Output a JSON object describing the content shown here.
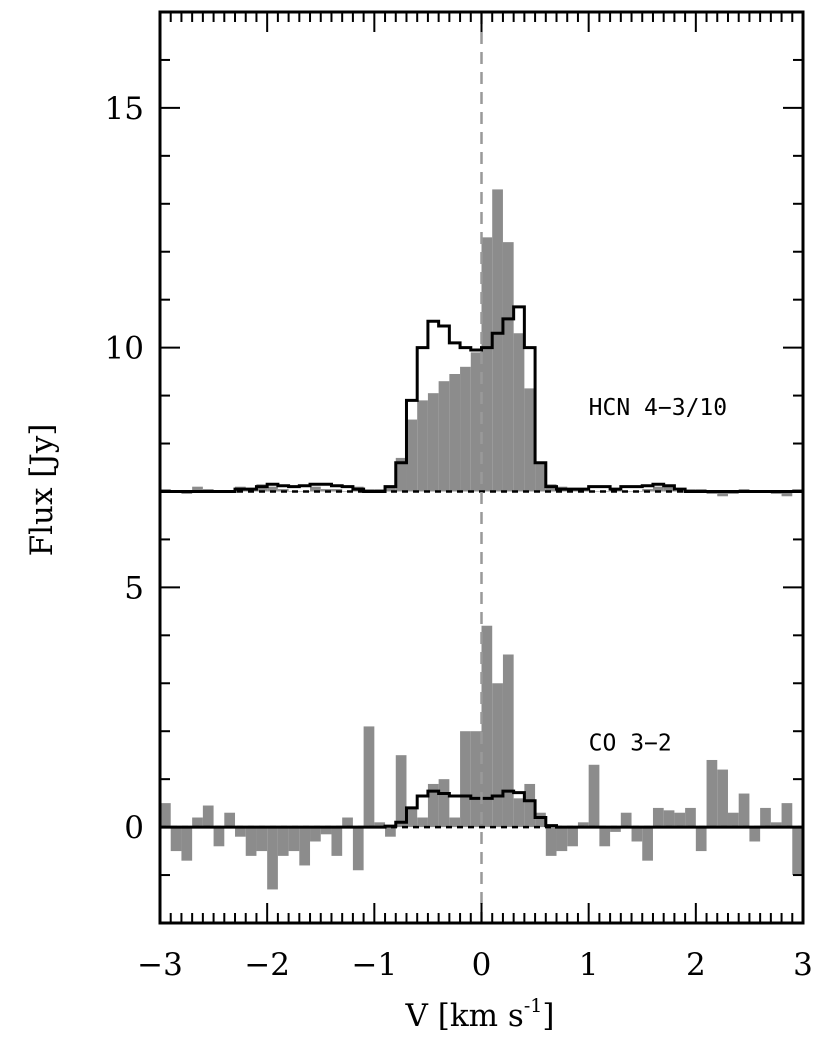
{
  "chart_data": {
    "type": "bar",
    "xlabel": "V [km s",
    "xlabel_sup": "-1",
    "xlabel_end": "]",
    "ylabel": "Flux [Jy]",
    "xlim": [
      -3,
      3
    ],
    "ylim": [
      -2,
      17
    ],
    "x_ticks": [
      -3,
      -2,
      -1,
      0,
      1,
      2,
      3
    ],
    "x_tick_labels": [
      "−3",
      "−2",
      "−1",
      "0",
      "1",
      "2",
      "3"
    ],
    "y_ticks": [
      0,
      5,
      10,
      15
    ],
    "y_tick_labels": [
      "0",
      "5",
      "10",
      "15"
    ],
    "grid": false,
    "vline_x": 0,
    "annotations": [
      {
        "text": "HCN 4−3/10",
        "x": 1.0,
        "y": 8.6
      },
      {
        "text": "CO 3−2",
        "x": 1.0,
        "y": 1.6
      }
    ],
    "series": [
      {
        "kind": "histogram-filled",
        "color": "#8c8c8c",
        "bin_width": 0.1,
        "x": [
          -2.95,
          -2.85,
          -2.75,
          -2.65,
          -2.55,
          -2.45,
          -2.35,
          -2.25,
          -2.15,
          -2.05,
          -1.95,
          -1.85,
          -1.75,
          -1.65,
          -1.55,
          -1.45,
          -1.35,
          -1.25,
          -1.15,
          -1.05,
          -0.95,
          -0.85,
          -0.75,
          -0.65,
          -0.55,
          -0.45,
          -0.35,
          -0.25,
          -0.15,
          -0.05,
          0.05,
          0.15,
          0.25,
          0.35,
          0.45,
          0.55,
          0.65,
          0.75,
          0.85,
          0.95,
          1.05,
          1.15,
          1.25,
          1.35,
          1.45,
          1.55,
          1.65,
          1.75,
          1.85,
          1.95,
          2.05,
          2.15,
          2.25,
          2.35,
          2.45,
          2.55,
          2.65,
          2.75,
          2.85,
          2.95
        ],
        "values": [
          7.05,
          7.0,
          6.95,
          7.1,
          7.05,
          7.0,
          7.0,
          7.1,
          7.05,
          7.15,
          7.1,
          7.05,
          7.0,
          7.0,
          7.1,
          7.05,
          7.05,
          7.0,
          7.1,
          7.05,
          7.05,
          7.1,
          7.7,
          8.5,
          8.9,
          9.05,
          9.3,
          9.45,
          9.6,
          9.9,
          12.3,
          13.3,
          12.2,
          10.3,
          9.15,
          7.6,
          7.15,
          7.1,
          7.05,
          7.05,
          7.0,
          7.0,
          7.05,
          7.0,
          7.0,
          7.05,
          7.1,
          7.1,
          7.0,
          7.05,
          7.05,
          6.95,
          6.9,
          6.95,
          7.05,
          7.0,
          7.0,
          6.95,
          6.9,
          7.05
        ]
      },
      {
        "kind": "histogram-step",
        "color": "#000000",
        "bin_width": 0.1,
        "x": [
          -2.95,
          -2.85,
          -2.75,
          -2.65,
          -2.55,
          -2.45,
          -2.35,
          -2.25,
          -2.15,
          -2.05,
          -1.95,
          -1.85,
          -1.75,
          -1.65,
          -1.55,
          -1.45,
          -1.35,
          -1.25,
          -1.15,
          -1.05,
          -0.95,
          -0.85,
          -0.75,
          -0.65,
          -0.55,
          -0.45,
          -0.35,
          -0.25,
          -0.15,
          -0.05,
          0.05,
          0.15,
          0.25,
          0.35,
          0.45,
          0.55,
          0.65,
          0.75,
          0.85,
          0.95,
          1.05,
          1.15,
          1.25,
          1.35,
          1.45,
          1.55,
          1.65,
          1.75,
          1.85,
          1.95,
          2.05,
          2.15,
          2.25,
          2.35,
          2.45,
          2.55,
          2.65,
          2.75,
          2.85,
          2.95
        ],
        "values": [
          7.0,
          7.0,
          7.0,
          7.0,
          7.0,
          7.0,
          7.0,
          7.05,
          7.05,
          7.1,
          7.15,
          7.12,
          7.1,
          7.12,
          7.15,
          7.15,
          7.12,
          7.1,
          7.05,
          7.0,
          7.0,
          7.1,
          7.6,
          8.9,
          10.0,
          10.55,
          10.45,
          10.1,
          10.0,
          9.95,
          10.0,
          10.3,
          10.6,
          10.85,
          10.0,
          7.6,
          7.1,
          7.05,
          7.05,
          7.05,
          7.1,
          7.1,
          7.05,
          7.1,
          7.1,
          7.12,
          7.15,
          7.12,
          7.05,
          7.0,
          7.0,
          7.0,
          7.0,
          7.0,
          7.0,
          7.0,
          7.0,
          7.0,
          7.0,
          7.0
        ]
      },
      {
        "kind": "histogram-filled",
        "color": "#8c8c8c",
        "bin_width": 0.1,
        "x": [
          -2.95,
          -2.85,
          -2.75,
          -2.65,
          -2.55,
          -2.45,
          -2.35,
          -2.25,
          -2.15,
          -2.05,
          -1.95,
          -1.85,
          -1.75,
          -1.65,
          -1.55,
          -1.45,
          -1.35,
          -1.25,
          -1.15,
          -1.05,
          -0.95,
          -0.85,
          -0.75,
          -0.65,
          -0.55,
          -0.45,
          -0.35,
          -0.25,
          -0.15,
          -0.05,
          0.05,
          0.15,
          0.25,
          0.35,
          0.45,
          0.55,
          0.65,
          0.75,
          0.85,
          0.95,
          1.05,
          1.15,
          1.25,
          1.35,
          1.45,
          1.55,
          1.65,
          1.75,
          1.85,
          1.95,
          2.05,
          2.15,
          2.25,
          2.35,
          2.45,
          2.55,
          2.65,
          2.75,
          2.85,
          2.95
        ],
        "values": [
          0.5,
          -0.5,
          -0.7,
          0.2,
          0.45,
          -0.4,
          0.3,
          -0.2,
          -0.6,
          -0.5,
          -1.3,
          -0.6,
          -0.5,
          -0.8,
          -0.3,
          -0.15,
          -0.6,
          0.2,
          -0.9,
          2.1,
          0.1,
          -0.2,
          1.5,
          0.4,
          0.2,
          0.9,
          1.0,
          0.2,
          2.0,
          2.0,
          4.2,
          3.0,
          3.6,
          0.6,
          0.9,
          0.3,
          -0.6,
          -0.5,
          -0.4,
          0.1,
          1.3,
          -0.4,
          -0.1,
          0.3,
          -0.3,
          -0.7,
          0.4,
          0.35,
          0.3,
          0.4,
          -0.5,
          1.4,
          1.2,
          0.3,
          0.7,
          -0.3,
          0.4,
          0.1,
          0.5,
          -1.0
        ]
      },
      {
        "kind": "histogram-step",
        "color": "#000000",
        "bin_width": 0.1,
        "x": [
          -2.95,
          -2.85,
          -2.75,
          -2.65,
          -2.55,
          -2.45,
          -2.35,
          -2.25,
          -2.15,
          -2.05,
          -1.95,
          -1.85,
          -1.75,
          -1.65,
          -1.55,
          -1.45,
          -1.35,
          -1.25,
          -1.15,
          -1.05,
          -0.95,
          -0.85,
          -0.75,
          -0.65,
          -0.55,
          -0.45,
          -0.35,
          -0.25,
          -0.15,
          -0.05,
          0.05,
          0.15,
          0.25,
          0.35,
          0.45,
          0.55,
          0.65,
          0.75,
          0.85,
          0.95,
          1.05,
          1.15,
          1.25,
          1.35,
          1.45,
          1.55,
          1.65,
          1.75,
          1.85,
          1.95,
          2.05,
          2.15,
          2.25,
          2.35,
          2.45,
          2.55,
          2.65,
          2.75,
          2.85,
          2.95
        ],
        "values": [
          0,
          0,
          0,
          0,
          0,
          0,
          0,
          0,
          0,
          0,
          0,
          0,
          0,
          0,
          0,
          0,
          0,
          0,
          0,
          0,
          0,
          0.02,
          0.1,
          0.4,
          0.65,
          0.75,
          0.7,
          0.65,
          0.65,
          0.6,
          0.6,
          0.65,
          0.75,
          0.72,
          0.55,
          0.2,
          0.03,
          0,
          0,
          0,
          0,
          0,
          0,
          0,
          0,
          0,
          0,
          0,
          0,
          0,
          0,
          0,
          0,
          0,
          0,
          0,
          0,
          0,
          0,
          0
        ]
      }
    ],
    "baselines": [
      {
        "y": 7.0,
        "color": "#000000",
        "dash": "dashed"
      },
      {
        "y": 0.0,
        "color": "#000000",
        "dash": "dashed"
      }
    ]
  }
}
